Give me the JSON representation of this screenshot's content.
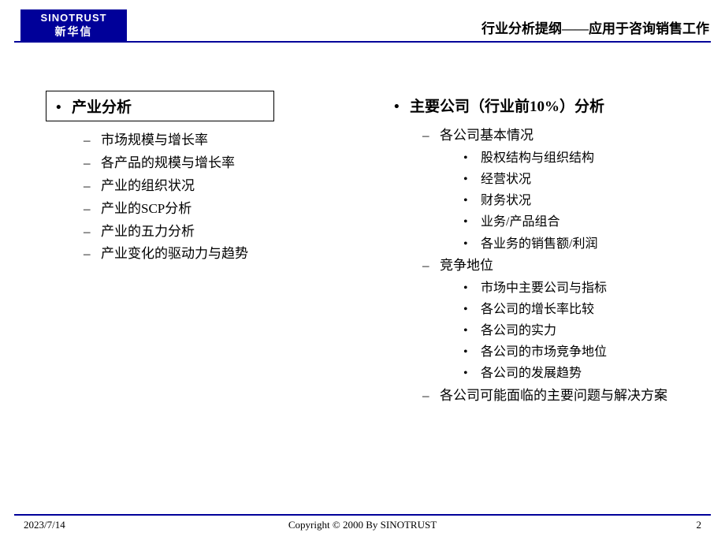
{
  "header": {
    "logo_en": "SINOTRUST",
    "logo_cn": "新华信",
    "title": "行业分析提纲——应用于咨询销售工作"
  },
  "left": {
    "title": "产业分析",
    "items": [
      "市场规模与增长率",
      "各产品的规模与增长率",
      "产业的组织状况",
      "产业的SCP分析",
      "产业的五力分析",
      "产业变化的驱动力与趋势"
    ]
  },
  "right": {
    "title": "主要公司（行业前10%）分析",
    "sections": [
      {
        "label": "各公司基本情况",
        "items": [
          "股权结构与组织结构",
          "经营状况",
          "财务状况",
          "业务/产品组合",
          "各业务的销售额/利润"
        ]
      },
      {
        "label": "竞争地位",
        "items": [
          "市场中主要公司与指标",
          "各公司的增长率比较",
          "各公司的实力",
          "各公司的市场竞争地位",
          "各公司的发展趋势"
        ]
      },
      {
        "label": "各公司可能面临的主要问题与解决方案",
        "items": []
      }
    ]
  },
  "footer": {
    "date": "2023/7/14",
    "copyright": "Copyright © 2000 By SINOTRUST",
    "page": "2"
  },
  "colors": {
    "brand": "#000099",
    "bg": "#ffffff",
    "text": "#000000"
  }
}
